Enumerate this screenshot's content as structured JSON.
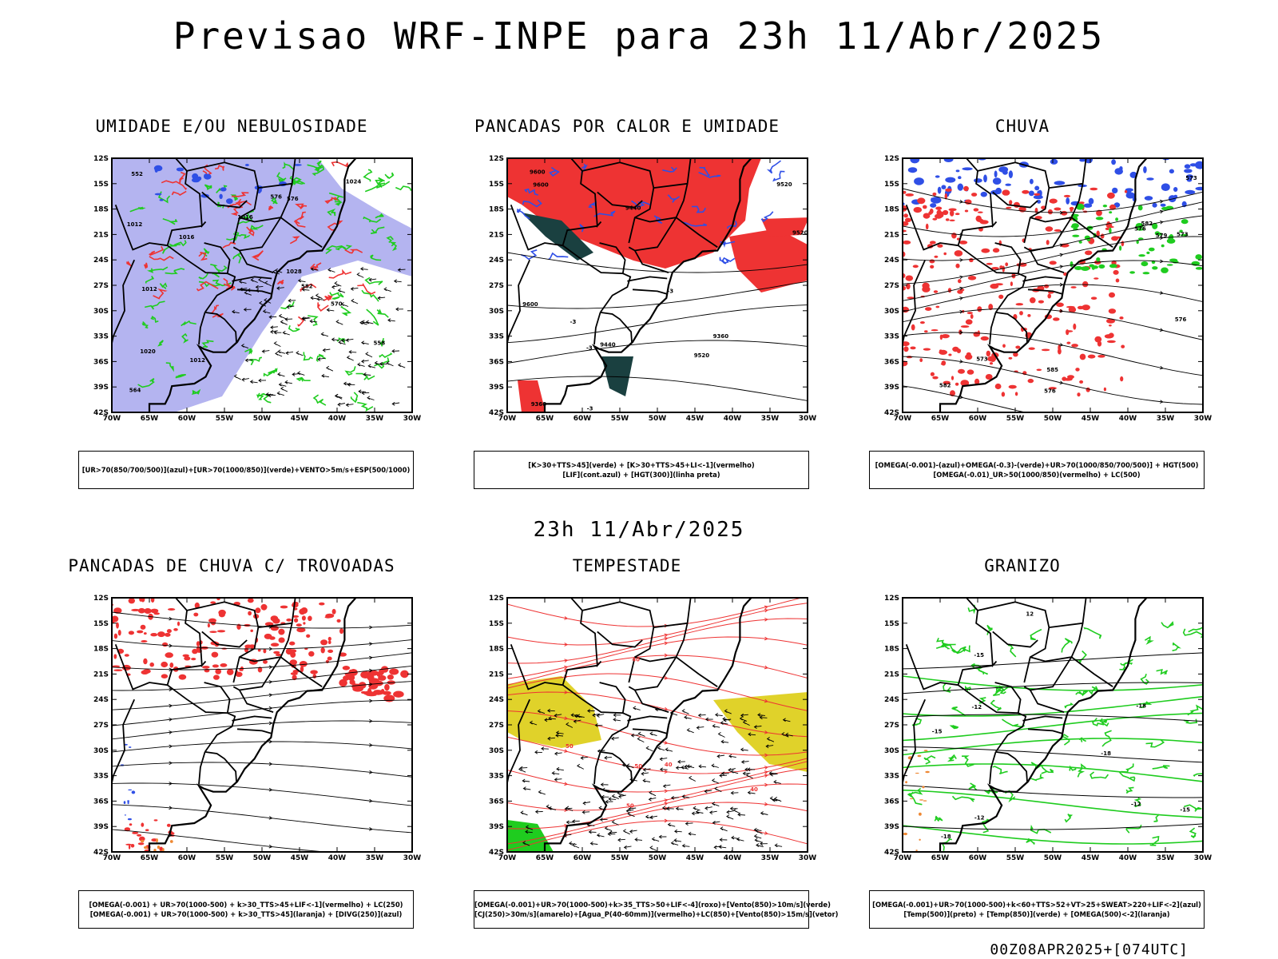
{
  "header": {
    "main_title": "Previsao WRF-INPE  para 23h 11/Abr/2025",
    "mid_title": "23h 11/Abr/2025",
    "footer": "00Z08APR2025+[074UTC]"
  },
  "axes": {
    "lat_labels": [
      "12S",
      "15S",
      "18S",
      "21S",
      "24S",
      "27S",
      "30S",
      "33S",
      "36S",
      "39S",
      "42S"
    ],
    "lon_labels": [
      "70W",
      "65W",
      "60W",
      "55W",
      "50W",
      "45W",
      "40W",
      "35W",
      "30W"
    ]
  },
  "colors": {
    "blue": "#2f4fe6",
    "green": "#1fcc1f",
    "red": "#ee3333",
    "lavender": "#b4b4f0",
    "yellow": "#e0d22a",
    "orange": "#ee8833",
    "teal": "#1a4040"
  },
  "panels": [
    {
      "title": "UMIDADE E/OU NEBULOSIDADE",
      "legend": [
        "[UR>70(850/700/500)](azul)+[UR>70(1000/850)](verde)+VENTO>5m/s+ESP(500/1000)"
      ],
      "contour_labels": [
        "1012",
        "1012",
        "1012",
        "1016",
        "1016",
        "1020",
        "1024",
        "1028",
        "576",
        "576",
        "570",
        "564",
        "558",
        "552",
        "582"
      ]
    },
    {
      "title": "PANCADAS POR CALOR E UMIDADE",
      "legend": [
        "[K>30+TTS>45](verde) + [K>30+TTS>45+LI<-1](vermelho)",
        "[LIF](cont.azul) + [HGT(300)](linha preta)"
      ],
      "contour_labels": [
        "9600",
        "9600",
        "9600",
        "9520",
        "9520",
        "9520",
        "9440",
        "9440",
        "9360",
        "9360",
        "-3",
        "-3",
        "-3",
        "-3"
      ]
    },
    {
      "title": "CHUVA",
      "legend": [
        "[OMEGA(-0.001)-(azul)+OMEGA(-0.3)-(verde)+UR>70(1000/850/700/500)] + HGT(500)",
        "[OMEGA(-0.01)_UR>50(1000/850)(vermelho) + LC(500)"
      ],
      "contour_labels": [
        "582",
        "582",
        "576",
        "576",
        "576",
        "573",
        "573",
        "573",
        "585",
        "579"
      ]
    },
    {
      "title": "PANCADAS DE CHUVA C/ TROVOADAS",
      "legend": [
        "[OMEGA(-0.001) + UR>70(1000-500) + k>30_TTS>45+LIF<-1](vermelho) + LC(250)",
        "[OMEGA(-0.001) + UR>70(1000-500) + k>30_TTS>45](laranja) + [DIVG(250)](azul)"
      ],
      "contour_labels": []
    },
    {
      "title": "TEMPESTADE",
      "legend": [
        "[OMEGA(-0.001)+UR>70(1000-500)+k>35_TTS>50+LIF<-4](roxo)+[Vento(850)>10m/s](verde)",
        "[CJ(250)>30m/s](amarelo)+[Agua_P(40-60mm)](vermelho)+LC(850)+[Vento(850)>15m/s](vetor)"
      ],
      "contour_labels": [
        "50",
        "50",
        "40",
        "40",
        "40",
        "50"
      ]
    },
    {
      "title": "GRANIZO",
      "legend": [
        "[OMEGA(-0.001)+UR>70(1000-500)+k<60+TTS>52+VT>25+SWEAT>220+LIF<-2](azul)",
        "[Temp(500)](preto) + [Temp(850)](verde) + [OMEGA(500)<-2](laranja)"
      ],
      "contour_labels": [
        "-12",
        "-12",
        "-12",
        "-15",
        "-15",
        "-15",
        "-18",
        "-18",
        "-18",
        "12"
      ]
    }
  ]
}
